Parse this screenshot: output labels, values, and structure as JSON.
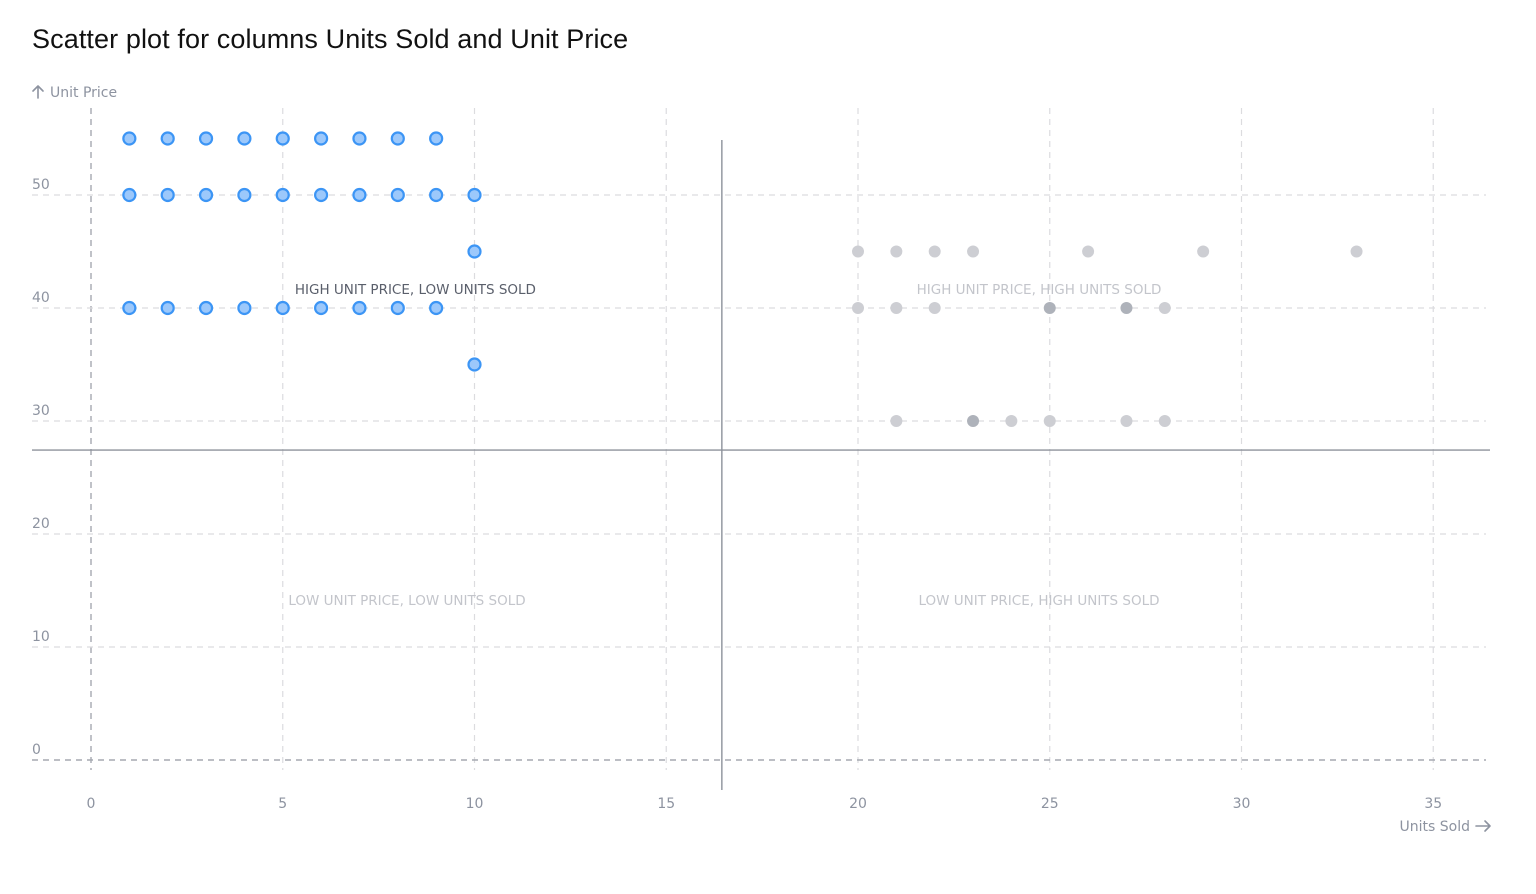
{
  "title": "Scatter plot for columns Units Sold and Unit Price",
  "colors": {
    "highlight_fill": "#9cc8fb",
    "highlight_stroke": "#3c95f5",
    "muted_fill": "#cdced3",
    "muted_dark_fill": "#aeb2ba",
    "grid": "#dcdcdf",
    "divider": "#8d929b",
    "tick_text": "#8d93a0",
    "active_label": "#5a5f6b",
    "inactive_label": "#c3c5cb"
  },
  "chart_data": {
    "type": "scatter",
    "title": "Scatter plot for columns Units Sold and Unit Price",
    "xlabel": "Units Sold",
    "ylabel": "Unit Price",
    "xlim": [
      -1.5,
      36.5
    ],
    "ylim": [
      -2.5,
      59
    ],
    "x_ticks": [
      0,
      5,
      10,
      15,
      20,
      25,
      30,
      35
    ],
    "y_ticks": [
      0,
      10,
      20,
      30,
      40,
      50
    ],
    "grid": true,
    "dividers": {
      "x": 16.45,
      "y": 27.43
    },
    "quadrant_labels": [
      {
        "text": "HIGH UNIT PRICE, LOW UNITS SOLD",
        "quadrant": "top-left",
        "active": true
      },
      {
        "text": "HIGH UNIT PRICE, HIGH UNITS SOLD",
        "quadrant": "top-right",
        "active": false
      },
      {
        "text": "LOW UNIT PRICE, LOW UNITS SOLD",
        "quadrant": "bottom-left",
        "active": false
      },
      {
        "text": "LOW UNIT PRICE, HIGH UNITS SOLD",
        "quadrant": "bottom-right",
        "active": false
      }
    ],
    "series": [
      {
        "name": "High Unit Price, Low Units Sold",
        "highlighted": true,
        "points": [
          [
            1,
            55
          ],
          [
            2,
            55
          ],
          [
            3,
            55
          ],
          [
            4,
            55
          ],
          [
            5,
            55
          ],
          [
            6,
            55
          ],
          [
            7,
            55
          ],
          [
            8,
            55
          ],
          [
            9,
            55
          ],
          [
            1,
            50
          ],
          [
            2,
            50
          ],
          [
            3,
            50
          ],
          [
            4,
            50
          ],
          [
            5,
            50
          ],
          [
            6,
            50
          ],
          [
            7,
            50
          ],
          [
            8,
            50
          ],
          [
            9,
            50
          ],
          [
            10,
            50
          ],
          [
            10,
            45
          ],
          [
            1,
            40
          ],
          [
            2,
            40
          ],
          [
            3,
            40
          ],
          [
            4,
            40
          ],
          [
            5,
            40
          ],
          [
            6,
            40
          ],
          [
            7,
            40
          ],
          [
            8,
            40
          ],
          [
            9,
            40
          ],
          [
            10,
            35
          ]
        ]
      },
      {
        "name": "High Unit Price, High Units Sold",
        "highlighted": false,
        "points": [
          [
            20,
            45
          ],
          [
            21,
            45
          ],
          [
            22,
            45
          ],
          [
            23,
            45
          ],
          [
            26,
            45
          ],
          [
            29,
            45
          ],
          [
            33,
            45
          ],
          [
            20,
            40
          ],
          [
            21,
            40
          ],
          [
            22,
            40
          ],
          [
            25,
            40
          ],
          [
            27,
            40
          ],
          [
            28,
            40
          ],
          [
            21,
            30
          ],
          [
            23,
            30
          ],
          [
            24,
            30
          ],
          [
            25,
            30
          ],
          [
            27,
            30
          ],
          [
            28,
            30
          ]
        ],
        "overlapping_points": [
          [
            25,
            40
          ],
          [
            27,
            40
          ],
          [
            23,
            30
          ]
        ]
      }
    ]
  }
}
